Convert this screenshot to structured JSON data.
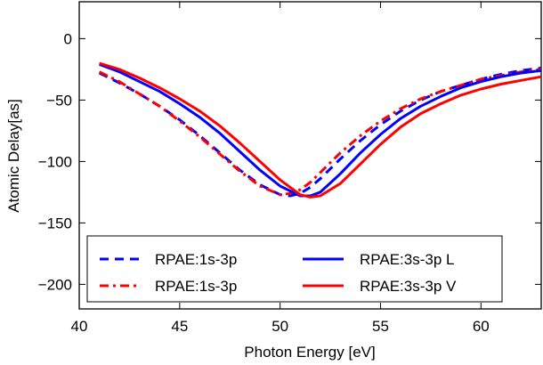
{
  "chart_data": {
    "type": "line",
    "title": "",
    "xlabel": "Photon Energy [eV]",
    "ylabel": "Atomic Delay[as]",
    "xlim": [
      40,
      63
    ],
    "ylim": [
      -220,
      30
    ],
    "xticks": [
      40,
      45,
      50,
      55,
      60
    ],
    "yticks": [
      0,
      -50,
      -100,
      -150,
      -200
    ],
    "xtick_labels": [
      "40",
      "45",
      "50",
      "55",
      "60"
    ],
    "ytick_labels": [
      "0",
      "−50",
      "−100",
      "−150",
      "−200"
    ],
    "grid": false,
    "legend_position": "lower-center",
    "series": [
      {
        "name": "RPAE:1s-3p",
        "color": "#0000ff",
        "style": "dashed",
        "x": [
          41,
          42,
          43,
          44,
          45,
          46,
          47,
          48,
          49,
          50,
          50.5,
          51,
          51.5,
          52,
          53,
          54,
          55,
          56,
          57,
          58,
          59,
          60,
          61,
          62,
          63
        ],
        "y": [
          -28,
          -36,
          -45,
          -55,
          -66,
          -79,
          -93,
          -107,
          -119,
          -127,
          -128,
          -126,
          -121,
          -114,
          -98,
          -83,
          -70,
          -59,
          -50,
          -43,
          -38,
          -33,
          -29,
          -26,
          -24
        ]
      },
      {
        "name": "RPAE:1s-3p",
        "color": "#ff0000",
        "style": "dashdot",
        "x": [
          41,
          42,
          43,
          44,
          45,
          46,
          47,
          48,
          49,
          50,
          50.5,
          51,
          51.5,
          52,
          53,
          54,
          55,
          56,
          57,
          58,
          59,
          60,
          61,
          62,
          63
        ],
        "y": [
          -27,
          -35,
          -45,
          -55,
          -67,
          -80,
          -94,
          -108,
          -120,
          -127,
          -126,
          -123,
          -117,
          -109,
          -93,
          -79,
          -67,
          -57,
          -49,
          -43,
          -38,
          -33,
          -30,
          -27,
          -25
        ]
      },
      {
        "name": "RPAE:3s-3p L",
        "color": "#0000ff",
        "style": "solid",
        "x": [
          41,
          42,
          43,
          44,
          45,
          46,
          47,
          48,
          49,
          50,
          51,
          51.5,
          52,
          53,
          54,
          55,
          56,
          57,
          58,
          59,
          60,
          61,
          62,
          63
        ],
        "y": [
          -21,
          -27,
          -35,
          -43,
          -53,
          -64,
          -77,
          -92,
          -107,
          -120,
          -128,
          -128,
          -125,
          -110,
          -93,
          -78,
          -65,
          -55,
          -47,
          -40,
          -35,
          -31,
          -28,
          -26
        ]
      },
      {
        "name": "RPAE:3s-3p V",
        "color": "#ff0000",
        "style": "solid",
        "x": [
          41,
          42,
          43,
          44,
          45,
          46,
          47,
          48,
          49,
          50,
          51,
          51.5,
          52,
          53,
          54,
          55,
          56,
          57,
          58,
          59,
          60,
          61,
          62,
          63
        ],
        "y": [
          -20,
          -25,
          -32,
          -40,
          -49,
          -59,
          -71,
          -85,
          -100,
          -115,
          -127,
          -129,
          -128,
          -118,
          -102,
          -86,
          -72,
          -61,
          -53,
          -46,
          -41,
          -37,
          -34,
          -31
        ]
      }
    ]
  }
}
